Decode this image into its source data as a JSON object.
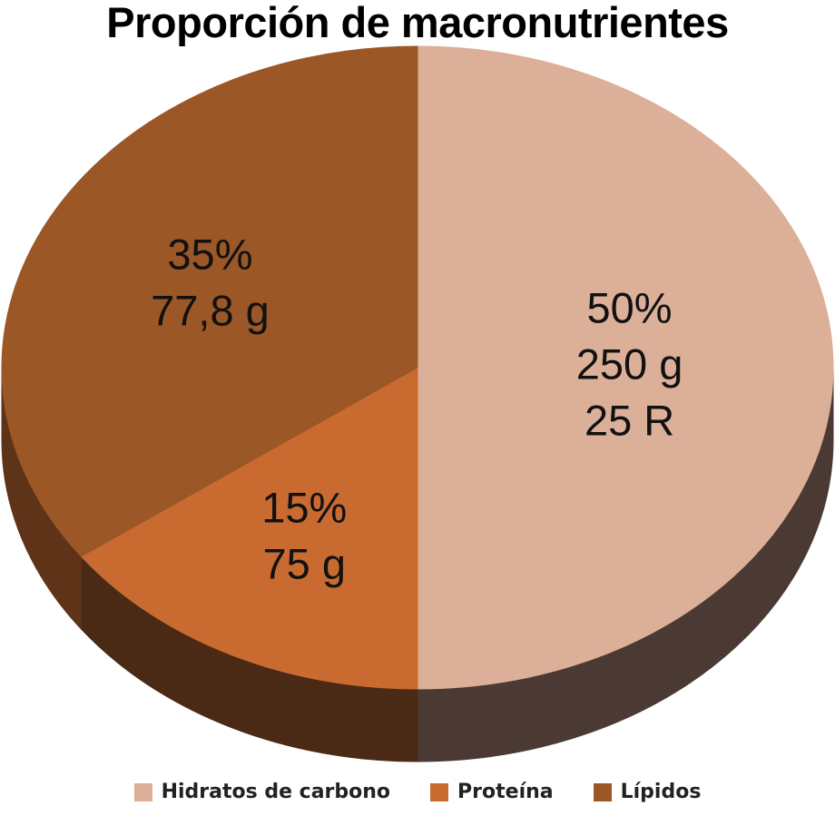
{
  "chart_data": {
    "type": "pie",
    "title": "Proporción de macronutrientes",
    "slices": [
      {
        "name": "Hidratos de carbono",
        "percent": 50,
        "label_lines": [
          "50%",
          "250 g",
          "25 R"
        ],
        "color": "#dcaf98",
        "side_color": "#4a3a33"
      },
      {
        "name": "Proteína",
        "percent": 15,
        "label_lines": [
          "15%",
          "75 g"
        ],
        "color": "#c96b30",
        "side_color": "#4a2a14"
      },
      {
        "name": "Lípidos",
        "percent": 35,
        "label_lines": [
          "35%",
          "77,8 g"
        ],
        "color": "#9c5726",
        "side_color": "#5e3318"
      }
    ],
    "legend_position": "bottom"
  }
}
